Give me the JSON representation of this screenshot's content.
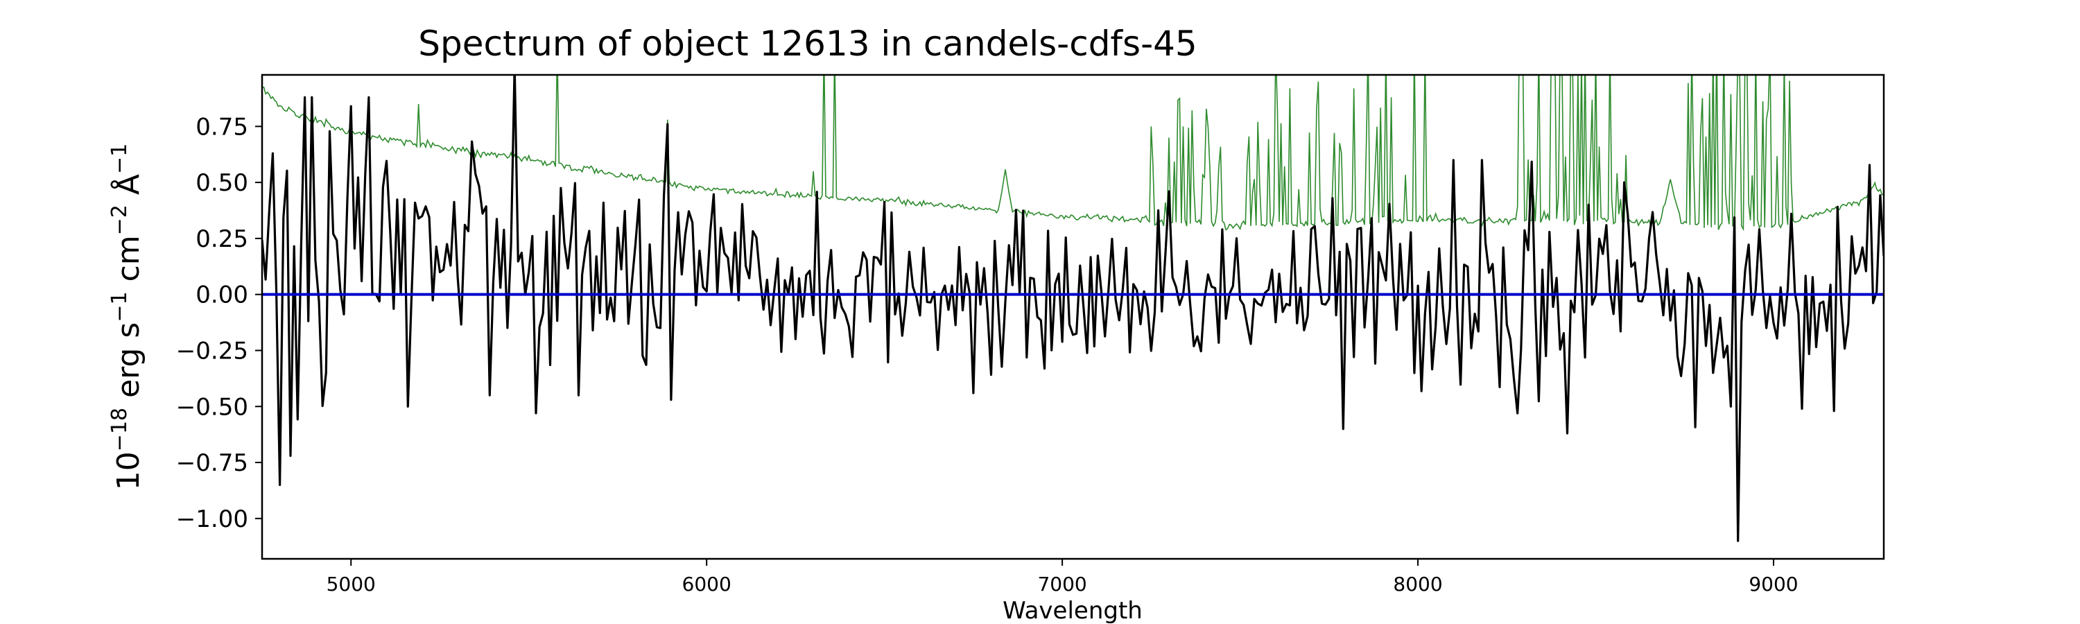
{
  "chart_data": {
    "type": "line",
    "title": "Spectrum of object 12613 in candels-cdfs-45",
    "xlabel": "Wavelength",
    "ylabel": {
      "base": "10",
      "exp_power": "−18",
      "unit_erg": " erg s",
      "exp_s": "−1",
      "unit_cm": " cm",
      "exp_cm": "−2",
      "unit_ang": " Å",
      "exp_ang": "−1"
    },
    "xlim": [
      4750,
      9310
    ],
    "ylim": [
      -1.18,
      0.98
    ],
    "xticks": [
      5000,
      6000,
      7000,
      8000,
      9000
    ],
    "xtick_labels": [
      "5000",
      "6000",
      "7000",
      "8000",
      "9000"
    ],
    "yticks": [
      0.75,
      0.5,
      0.25,
      0.0,
      -0.25,
      -0.5,
      -0.75,
      -1.0
    ],
    "ytick_labels": [
      "0.75",
      "0.50",
      "0.25",
      "0.00",
      "−0.25",
      "−0.50",
      "−0.75",
      "−1.00"
    ],
    "grid": false,
    "colors": {
      "flux": "#000000",
      "error": "#2e8b2e",
      "zero": "#0000cc",
      "axes": "#000000"
    },
    "series": [
      {
        "role": "flux",
        "x_start": 4750,
        "x_end": 9310,
        "x_step": 10,
        "trend": [
          [
            4750,
            0.28
          ],
          [
            5000,
            0.24
          ],
          [
            5500,
            0.12
          ],
          [
            6000,
            0.06
          ],
          [
            6500,
            0.03
          ],
          [
            7000,
            -0.02
          ],
          [
            7500,
            0.02
          ],
          [
            8000,
            0.01
          ],
          [
            8500,
            0.05
          ],
          [
            9000,
            0.0
          ],
          [
            9310,
            0.02
          ]
        ],
        "scatter": [
          [
            4750,
            0.38
          ],
          [
            5100,
            0.32
          ],
          [
            5500,
            0.24
          ],
          [
            6000,
            0.2
          ],
          [
            6500,
            0.16
          ],
          [
            7000,
            0.16
          ],
          [
            7500,
            0.18
          ],
          [
            8000,
            0.2
          ],
          [
            8400,
            0.26
          ],
          [
            8600,
            0.2
          ],
          [
            9000,
            0.2
          ],
          [
            9310,
            0.22
          ]
        ],
        "features": [
          [
            4800,
            -0.85
          ],
          [
            4830,
            -0.72
          ],
          [
            4870,
            0.88
          ],
          [
            5000,
            0.84
          ],
          [
            5050,
            0.88
          ],
          [
            5160,
            -0.5
          ],
          [
            5390,
            -0.45
          ],
          [
            5520,
            -0.53
          ],
          [
            5640,
            -0.45
          ],
          [
            5900,
            -0.47
          ],
          [
            5890,
            0.76
          ],
          [
            6750,
            -0.44
          ],
          [
            7300,
            0.46
          ],
          [
            7790,
            -0.6
          ],
          [
            8280,
            -0.53
          ],
          [
            8420,
            -0.62
          ],
          [
            8900,
            -1.1
          ],
          [
            8830,
            -0.35
          ],
          [
            8880,
            -0.5
          ],
          [
            9080,
            -0.51
          ],
          [
            9170,
            -0.52
          ],
          [
            8100,
            0.6
          ],
          [
            8180,
            0.6
          ],
          [
            8580,
            0.5
          ]
        ]
      },
      {
        "role": "error",
        "x_start": 4750,
        "x_end": 9310,
        "x_step": 5,
        "continuum": [
          [
            4750,
            0.92
          ],
          [
            4800,
            0.84
          ],
          [
            5000,
            0.72
          ],
          [
            5500,
            0.6
          ],
          [
            6000,
            0.47
          ],
          [
            6500,
            0.42
          ],
          [
            7000,
            0.35
          ],
          [
            7500,
            0.31
          ],
          [
            8000,
            0.33
          ],
          [
            8500,
            0.33
          ],
          [
            9000,
            0.3
          ],
          [
            9310,
            0.45
          ]
        ],
        "bumps": [
          [
            6820,
            6860,
            0.18
          ],
          [
            8680,
            8740,
            0.2
          ],
          [
            9260,
            9310,
            0.05
          ]
        ],
        "spikes": [
          [
            5190,
            0.85
          ],
          [
            5580,
            1.1
          ],
          [
            5890,
            0.78
          ],
          [
            6300,
            0.55
          ],
          [
            6330,
            1.1
          ],
          [
            6360,
            1.1
          ],
          [
            7250,
            0.75
          ],
          [
            7300,
            0.7
          ],
          [
            7340,
            0.75
          ],
          [
            7600,
            1.1
          ],
          [
            7640,
            0.92
          ],
          [
            7720,
            0.95
          ],
          [
            7820,
            0.92
          ],
          [
            7860,
            1.1
          ],
          [
            7910,
            1.1
          ],
          [
            7990,
            1.1
          ],
          [
            8020,
            1.1
          ],
          [
            8290,
            1.1
          ],
          [
            8340,
            1.1
          ],
          [
            8400,
            1.1
          ],
          [
            8430,
            1.1
          ],
          [
            8470,
            1.1
          ],
          [
            8500,
            1.1
          ],
          [
            8540,
            1.1
          ],
          [
            8770,
            1.1
          ],
          [
            8830,
            1.1
          ],
          [
            8860,
            1.1
          ],
          [
            8920,
            1.1
          ],
          [
            8950,
            1.1
          ],
          [
            8990,
            1.1
          ]
        ],
        "forest": [
          [
            7250,
            8000,
            0.55
          ],
          [
            8280,
            8600,
            0.9
          ],
          [
            8760,
            9050,
            0.9
          ]
        ]
      },
      {
        "role": "zero",
        "x": [
          4750,
          9310
        ],
        "values": [
          0.0,
          0.0
        ]
      }
    ]
  }
}
